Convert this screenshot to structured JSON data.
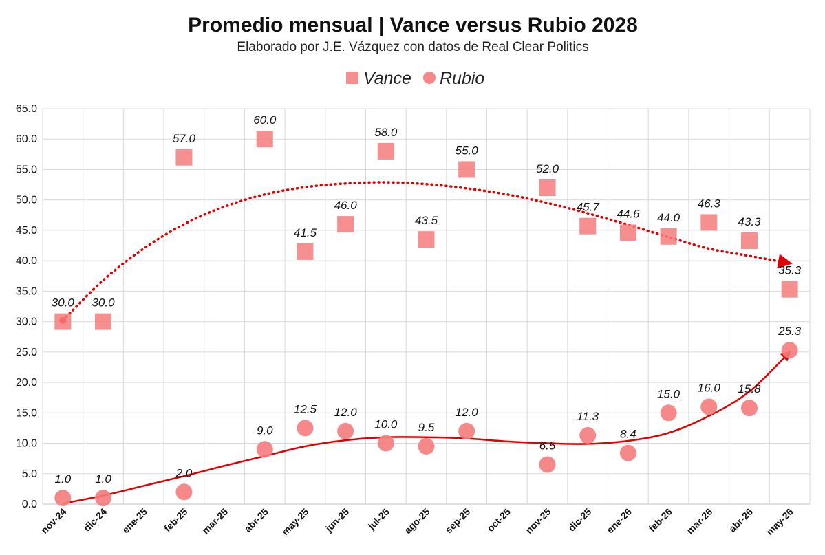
{
  "chart_data": {
    "type": "scatter",
    "title": "Promedio mensual | Vance versus Rubio 2028",
    "subtitle": "Elaborado por J.E. Vázquez con datos de Real Clear Politics",
    "xlabel": "",
    "ylabel": "",
    "ylim": [
      0,
      65
    ],
    "yticks": [
      "0.0",
      "5.0",
      "10.0",
      "15.0",
      "20.0",
      "25.0",
      "30.0",
      "35.0",
      "40.0",
      "45.0",
      "50.0",
      "55.0",
      "60.0",
      "65.0"
    ],
    "grid": true,
    "legend_position": "top",
    "categories": [
      "nov-24",
      "dic-24",
      "ene-25",
      "feb-25",
      "mar-25",
      "abr-25",
      "may-25",
      "jun-25",
      "jul-25",
      "ago-25",
      "sep-25",
      "oct-25",
      "nov-25",
      "dic-25",
      "ene-26",
      "feb-26",
      "mar-26",
      "abr-26",
      "may-26"
    ],
    "series": [
      {
        "name": "Vance",
        "marker": "square",
        "color": "#f47c7c",
        "values": [
          30.0,
          30.0,
          null,
          57.0,
          null,
          60.0,
          41.5,
          46.0,
          58.0,
          43.5,
          55.0,
          null,
          52.0,
          45.7,
          44.6,
          44.0,
          46.3,
          43.3,
          35.3
        ],
        "labels": [
          "30.0",
          "30.0",
          null,
          "57.0",
          null,
          "60.0",
          "41.5",
          "46.0",
          "58.0",
          "43.5",
          "55.0",
          null,
          "52.0",
          "45.7",
          "44.6",
          "44.0",
          "46.3",
          "43.3",
          "35.3"
        ]
      },
      {
        "name": "Rubio",
        "marker": "circle",
        "color": "#f47c7c",
        "values": [
          1.0,
          1.0,
          null,
          2.0,
          null,
          9.0,
          12.5,
          12.0,
          10.0,
          9.5,
          12.0,
          null,
          6.5,
          11.3,
          8.4,
          15.0,
          16.0,
          15.8,
          25.3
        ],
        "labels": [
          "1.0",
          "1.0",
          null,
          "2.0",
          null,
          "9.0",
          "12.5",
          "12.0",
          "10.0",
          "9.5",
          "12.0",
          null,
          "6.5",
          "11.3",
          "8.4",
          "15.0",
          "16.0",
          "15.8",
          "25.3"
        ]
      }
    ],
    "trendlines": [
      {
        "series": "Vance",
        "style": "dotted-arrow",
        "color": "#e00000",
        "points": [
          [
            0,
            30.2
          ],
          [
            1,
            36.8
          ],
          [
            2,
            42.0
          ],
          [
            3,
            46.0
          ],
          [
            4,
            48.9
          ],
          [
            5,
            50.9
          ],
          [
            6,
            52.1
          ],
          [
            7,
            52.7
          ],
          [
            8,
            52.9
          ],
          [
            9,
            52.6
          ],
          [
            10,
            51.9
          ],
          [
            11,
            50.9
          ],
          [
            12,
            49.5
          ],
          [
            13,
            47.8
          ],
          [
            14,
            45.9
          ],
          [
            15,
            43.9
          ],
          [
            16,
            42.0
          ],
          [
            17,
            40.8
          ],
          [
            18,
            39.6
          ]
        ]
      },
      {
        "series": "Rubio",
        "style": "solid-arrow",
        "color": "#e00000",
        "points": [
          [
            0,
            0.1
          ],
          [
            1,
            1.4
          ],
          [
            2,
            3.0
          ],
          [
            3,
            4.6
          ],
          [
            4,
            6.3
          ],
          [
            5,
            7.9
          ],
          [
            6,
            9.5
          ],
          [
            7,
            10.5
          ],
          [
            8,
            11.0
          ],
          [
            9,
            11.0
          ],
          [
            10,
            10.8
          ],
          [
            11,
            10.3
          ],
          [
            12,
            10.0
          ],
          [
            13,
            9.9
          ],
          [
            14,
            10.4
          ],
          [
            15,
            11.7
          ],
          [
            16,
            14.5
          ],
          [
            17,
            18.5
          ],
          [
            18,
            25.0
          ]
        ]
      }
    ]
  }
}
